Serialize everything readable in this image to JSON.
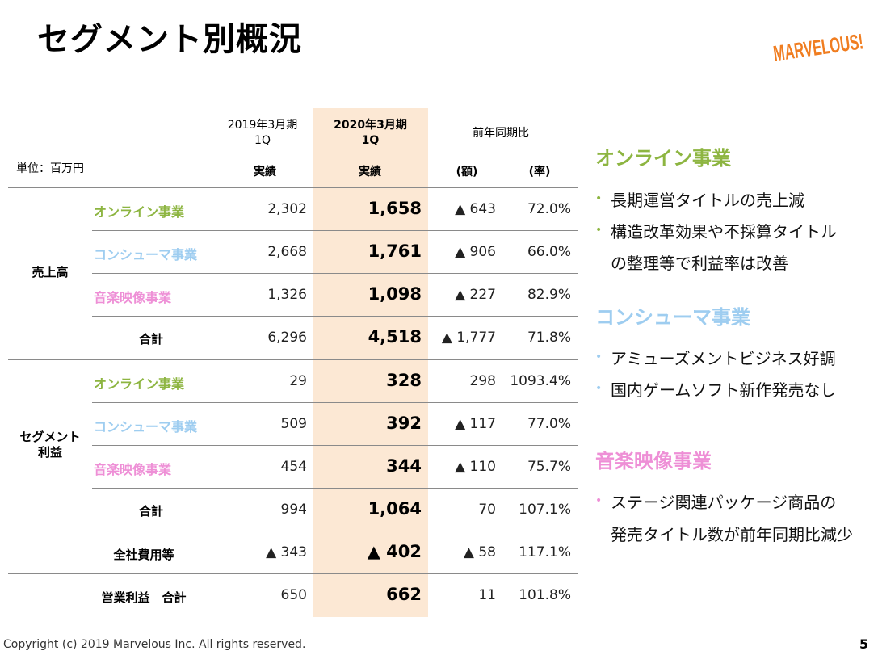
{
  "title": "セグメント別概況",
  "logo": {
    "text": "MARVELOUS!",
    "color": "#f07d20"
  },
  "unit_label": "単位：百万円",
  "header": {
    "prev_period": "2019年3月期",
    "prev_q": "1Q",
    "curr_period": "2020年3月期",
    "curr_q": "1Q",
    "yoy": "前年同期比",
    "actual_prev": "実績",
    "actual_curr": "実績",
    "amount": "(額)",
    "rate": "(率)"
  },
  "sales": {
    "category": "売上高",
    "rows": [
      {
        "label": "オンライン事業",
        "prev": "2,302",
        "curr": "1,658",
        "diff": "▲ 643",
        "rate": "72.0%"
      },
      {
        "label": "コンシューマ事業",
        "prev": "2,668",
        "curr": "1,761",
        "diff": "▲ 906",
        "rate": "66.0%"
      },
      {
        "label": "音楽映像事業",
        "prev": "1,326",
        "curr": "1,098",
        "diff": "▲ 227",
        "rate": "82.9%"
      },
      {
        "label": "合計",
        "prev": "6,296",
        "curr": "4,518",
        "diff": "▲ 1,777",
        "rate": "71.8%"
      }
    ]
  },
  "profit": {
    "category_line1": "セグメント",
    "category_line2": "利益",
    "rows": [
      {
        "label": "オンライン事業",
        "prev": "29",
        "curr": "328",
        "diff": "298",
        "rate": "1093.4%"
      },
      {
        "label": "コンシューマ事業",
        "prev": "509",
        "curr": "392",
        "diff": "▲ 117",
        "rate": "77.0%"
      },
      {
        "label": "音楽映像事業",
        "prev": "454",
        "curr": "344",
        "diff": "▲ 110",
        "rate": "75.7%"
      },
      {
        "label": "合計",
        "prev": "994",
        "curr": "1,064",
        "diff": "70",
        "rate": "107.1%"
      }
    ]
  },
  "corporate": {
    "label": "全社費用等",
    "prev": "▲ 343",
    "curr": "▲ 402",
    "diff": "▲ 58",
    "rate": "117.1%"
  },
  "operating": {
    "label": "営業利益　合計",
    "prev": "650",
    "curr": "662",
    "diff": "11",
    "rate": "101.8%"
  },
  "commentary": {
    "online": {
      "heading": "オンライン事業",
      "bullets": [
        "長期運営タイトルの売上減",
        "構造改革効果や不採算タイトル",
        "の整理等で利益率は改善"
      ]
    },
    "consumer": {
      "heading": "コンシューマ事業",
      "bullets": [
        "アミューズメントビジネス好調",
        "国内ゲームソフト新作発売なし"
      ]
    },
    "music": {
      "heading": "音楽映像事業",
      "bullets": [
        "ステージ関連パッケージ商品の",
        "発売タイトル数が前年同期比減少"
      ]
    }
  },
  "bullet_glyph": "•",
  "footer": {
    "copyright": "Copyright (c) 2019 Marvelous Inc. All rights reserved.",
    "page": "5"
  },
  "colors": {
    "online": "#8db541",
    "consumer": "#9ecdf0",
    "music": "#ee8fd6",
    "highlight": "#fce8d4"
  }
}
